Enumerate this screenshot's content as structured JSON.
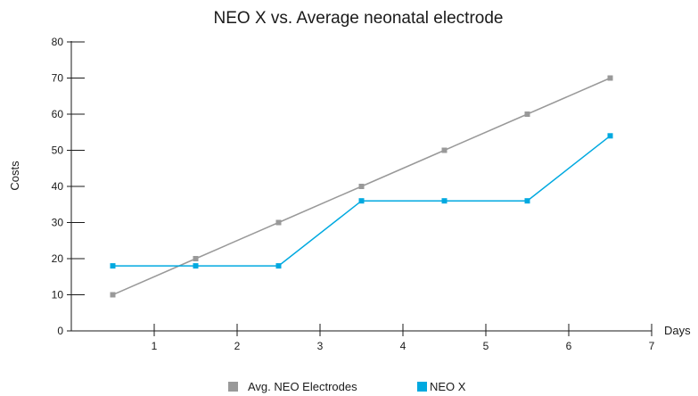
{
  "chart_data": {
    "type": "line",
    "title": "NEO X vs. Average neonatal electrode",
    "xlabel": "Days",
    "ylabel": "Costs",
    "xlim": [
      0,
      7
    ],
    "ylim": [
      0,
      80
    ],
    "x_ticks": [
      1,
      2,
      3,
      4,
      5,
      6,
      7
    ],
    "y_ticks": [
      0,
      10,
      20,
      30,
      40,
      50,
      60,
      70,
      80
    ],
    "grid": false,
    "legend": "bottom",
    "series": [
      {
        "name": "Avg. NEO Electrodes",
        "color": "#999999",
        "x": [
          0.5,
          1.5,
          2.5,
          3.5,
          4.5,
          5.5,
          6.5
        ],
        "y": [
          10,
          20,
          30,
          40,
          50,
          60,
          70
        ]
      },
      {
        "name": "NEO X",
        "color": "#00a9e0",
        "x": [
          0.5,
          1.5,
          2.5,
          3.5,
          4.5,
          5.5,
          6.5
        ],
        "y": [
          18,
          18,
          18,
          36,
          36,
          36,
          54
        ]
      }
    ]
  }
}
